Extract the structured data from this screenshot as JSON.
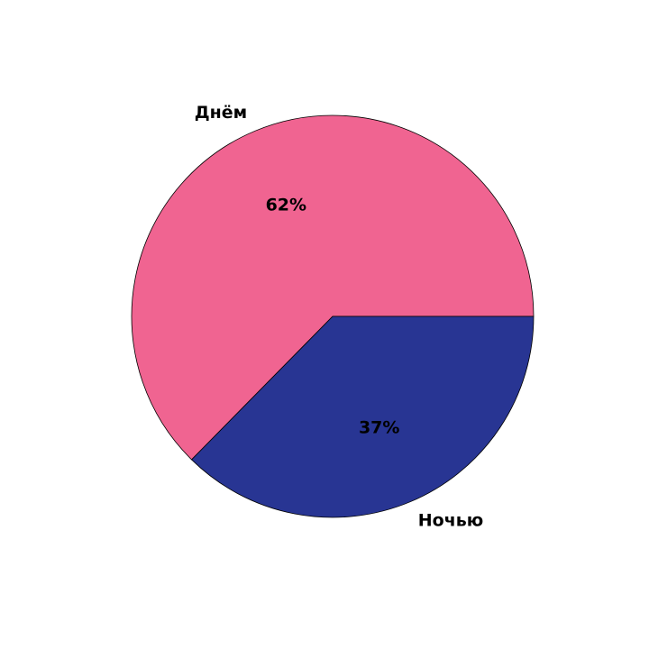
{
  "chart_data": {
    "type": "pie",
    "categories": [
      "Днём",
      "Ночью"
    ],
    "values": [
      62,
      37
    ],
    "percent_labels": [
      "62%",
      "37%"
    ],
    "colors": [
      "#f06491",
      "#283593"
    ],
    "edge_color": "#000000",
    "title": "",
    "legend": "none"
  }
}
